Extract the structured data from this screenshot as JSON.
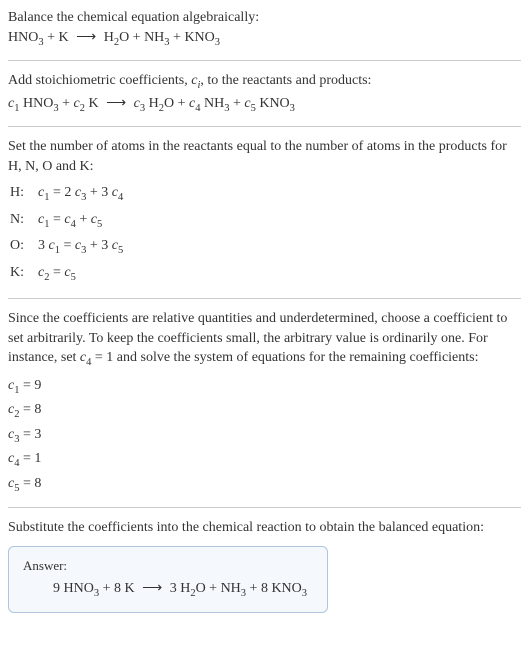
{
  "intro": {
    "line1": "Balance the chemical equation algebraically:",
    "equation": "HNO₃ + K ⟶ H₂O + NH₃ + KNO₃"
  },
  "step1": {
    "text": "Add stoichiometric coefficients, cᵢ, to the reactants and products:",
    "equation": "c₁ HNO₃ + c₂ K ⟶ c₃ H₂O + c₄ NH₃ + c₅ KNO₃"
  },
  "step2": {
    "text": "Set the number of atoms in the reactants equal to the number of atoms in the products for H, N, O and K:",
    "rows": [
      {
        "label": "H:",
        "eq": "c₁ = 2 c₃ + 3 c₄"
      },
      {
        "label": "N:",
        "eq": "c₁ = c₄ + c₅"
      },
      {
        "label": "O:",
        "eq": "3 c₁ = c₃ + 3 c₅"
      },
      {
        "label": "K:",
        "eq": "c₂ = c₅"
      }
    ]
  },
  "step3": {
    "text": "Since the coefficients are relative quantities and underdetermined, choose a coefficient to set arbitrarily. To keep the coefficients small, the arbitrary value is ordinarily one. For instance, set c₄ = 1 and solve the system of equations for the remaining coefficients:",
    "coeffs": [
      "c₁ = 9",
      "c₂ = 8",
      "c₃ = 3",
      "c₄ = 1",
      "c₅ = 8"
    ]
  },
  "step4": {
    "text": "Substitute the coefficients into the chemical reaction to obtain the balanced equation:"
  },
  "answer": {
    "label": "Answer:",
    "equation": "9 HNO₃ + 8 K ⟶ 3 H₂O + NH₃ + 8 KNO₃"
  }
}
